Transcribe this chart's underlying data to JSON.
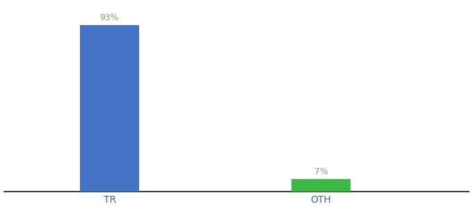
{
  "categories": [
    "TR",
    "OTH"
  ],
  "values": [
    93,
    7
  ],
  "bar_colors": [
    "#4472c4",
    "#3cb843"
  ],
  "label_texts": [
    "93%",
    "7%"
  ],
  "label_color": "#999977",
  "background_color": "#ffffff",
  "ylim": [
    0,
    105
  ],
  "bar_width": 0.28,
  "bar_positions": [
    1,
    2
  ],
  "xlim": [
    0.5,
    2.7
  ],
  "xlabel_fontsize": 10,
  "label_fontsize": 9,
  "tick_label_color": "#4466aa",
  "axis_line_color": "#111111"
}
